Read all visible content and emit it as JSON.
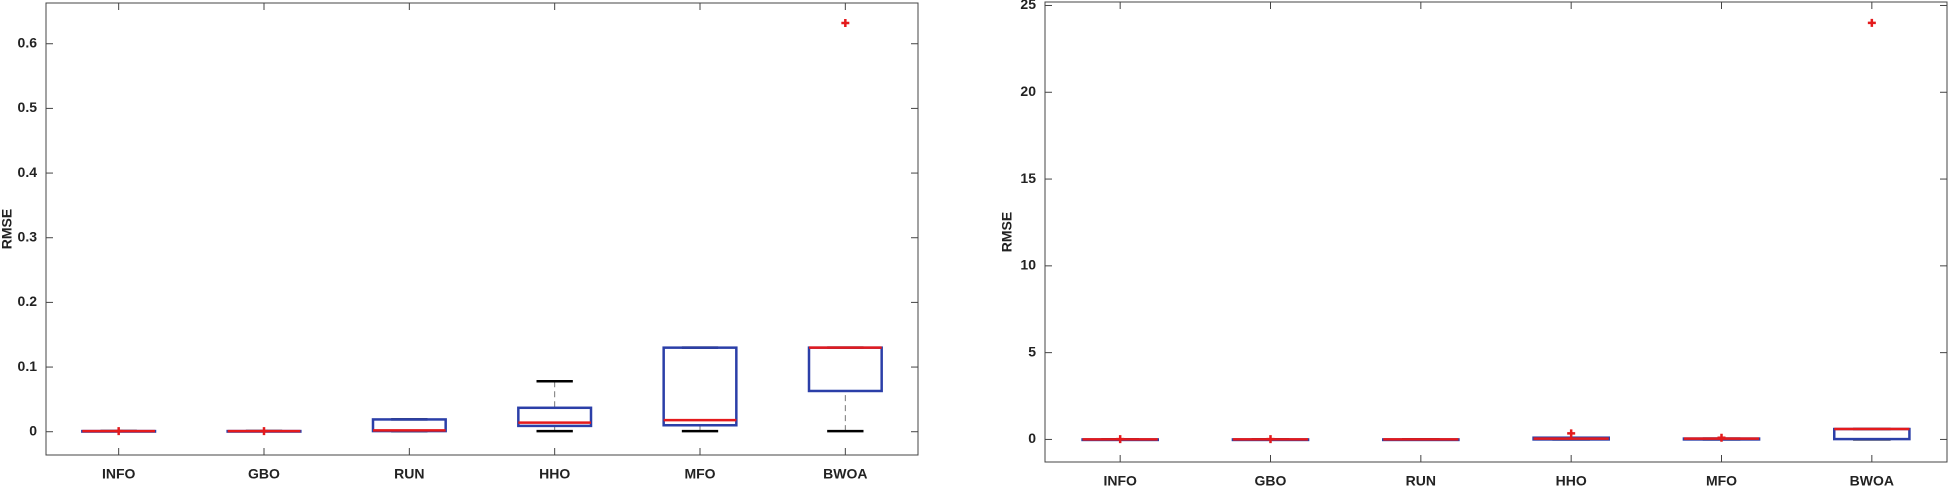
{
  "chart_data": [
    {
      "type": "box",
      "ylabel": "RMSE",
      "categories": [
        "INFO",
        "GBO",
        "RUN",
        "HHO",
        "MFO",
        "BWOA"
      ],
      "boxes": [
        {
          "whisker_low": 0.001,
          "q1": 0.001,
          "median": 0.001,
          "q3": 0.001,
          "whisker_high": 0.001,
          "outliers": [
            0.001
          ]
        },
        {
          "whisker_low": 0.001,
          "q1": 0.001,
          "median": 0.001,
          "q3": 0.001,
          "whisker_high": 0.001,
          "outliers": [
            0.001
          ]
        },
        {
          "whisker_low": 0.001,
          "q1": 0.001,
          "median": 0.002,
          "q3": 0.019,
          "whisker_high": 0.019,
          "outliers": []
        },
        {
          "whisker_low": 0.001,
          "q1": 0.009,
          "median": 0.014,
          "q3": 0.037,
          "whisker_high": 0.078,
          "outliers": []
        },
        {
          "whisker_low": 0.001,
          "q1": 0.01,
          "median": 0.018,
          "q3": 0.13,
          "whisker_high": 0.13,
          "outliers": []
        },
        {
          "whisker_low": 0.001,
          "q1": 0.063,
          "median": 0.13,
          "q3": 0.13,
          "whisker_high": 0.13,
          "outliers": [
            0.632
          ]
        }
      ],
      "box_color": "#2b3fa8",
      "median_color": "#e41a1c",
      "whisker_color": "#000000",
      "outlier_color": "#e41a1c",
      "ylim": [
        -0.036,
        0.663
      ],
      "yticks": [
        0,
        0.1,
        0.2,
        0.3,
        0.4,
        0.5,
        0.6
      ]
    },
    {
      "type": "box",
      "ylabel": "RMSE",
      "categories": [
        "INFO",
        "GBO",
        "RUN",
        "HHO",
        "MFO",
        "BWOA"
      ],
      "boxes": [
        {
          "whisker_low": 0,
          "q1": 0,
          "median": 0,
          "q3": 0,
          "whisker_high": 0,
          "outliers": [
            0.02
          ]
        },
        {
          "whisker_low": 0,
          "q1": 0,
          "median": 0,
          "q3": 0,
          "whisker_high": 0,
          "outliers": [
            0.02
          ]
        },
        {
          "whisker_low": 0,
          "q1": 0,
          "median": 0,
          "q3": 0,
          "whisker_high": 0,
          "outliers": []
        },
        {
          "whisker_low": 0,
          "q1": 0,
          "median": 0.05,
          "q3": 0.1,
          "whisker_high": 0.1,
          "outliers": [
            0.35
          ]
        },
        {
          "whisker_low": 0,
          "q1": 0,
          "median": 0.05,
          "q3": 0.05,
          "whisker_high": 0.05,
          "outliers": [
            0.1
          ]
        },
        {
          "whisker_low": 0,
          "q1": 0.02,
          "median": 0.6,
          "q3": 0.6,
          "whisker_high": 0.6,
          "outliers": [
            24
          ]
        }
      ],
      "box_color": "#2b3fa8",
      "median_color": "#e41a1c",
      "whisker_color": "#000000",
      "outlier_color": "#e41a1c",
      "ylim": [
        -1.3,
        25.2
      ],
      "yticks": [
        0,
        5,
        10,
        15,
        20,
        25
      ]
    }
  ]
}
